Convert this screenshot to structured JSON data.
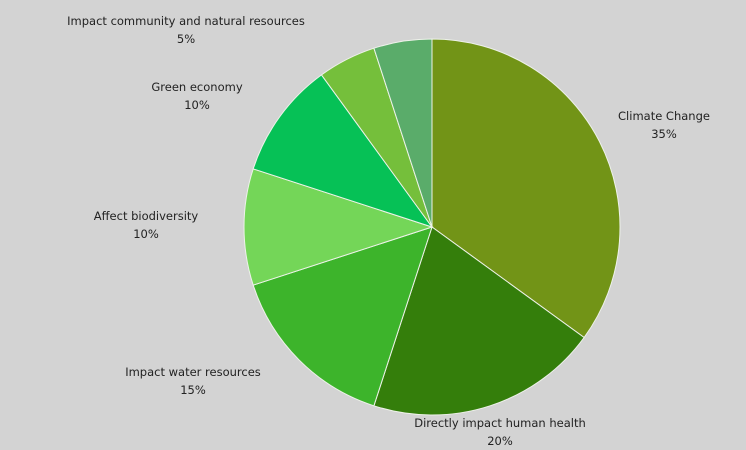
{
  "chart_data": {
    "type": "pie",
    "start_angle_deg": 0,
    "direction": "clockwise",
    "slices": [
      {
        "label": "Climate Change",
        "value": 35,
        "display": "35%",
        "color": "#729417"
      },
      {
        "label": "Directly impact human health",
        "value": 20,
        "display": "20%",
        "color": "#347e0b"
      },
      {
        "label": "Impact water resources",
        "value": 15,
        "display": "15%",
        "color": "#3db42b"
      },
      {
        "label": "Affect biodiversity",
        "value": 10,
        "display": "10%",
        "color": "#74d658"
      },
      {
        "label": "Green economy",
        "value": 10,
        "display": "10%",
        "color": "#06c156"
      },
      {
        "label": "",
        "value": 5,
        "display": "",
        "color": "#75bf3b"
      },
      {
        "label": "Impact community and natural resources",
        "value": 5,
        "display": "5%",
        "color": "#5aac6a"
      }
    ]
  }
}
